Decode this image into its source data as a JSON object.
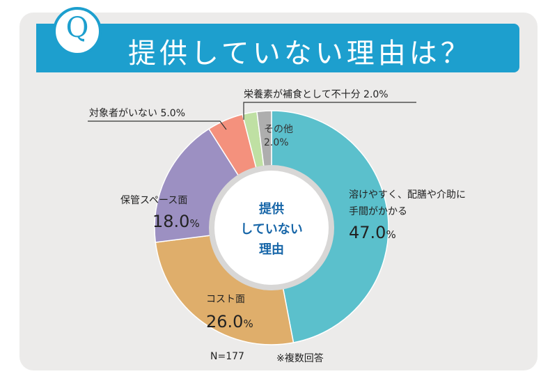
{
  "header": {
    "q_label": "Q",
    "title": "提供していない理由は？"
  },
  "chart_data": {
    "type": "pie",
    "subtype": "donut",
    "center_label": [
      "提供",
      "していない",
      "理由"
    ],
    "slices": [
      {
        "key": "s1",
        "lines": [
          "溶けやすく、配膳や介助に",
          "手間がかかる"
        ],
        "value": 47.0,
        "value_text": "47.0",
        "unit": "%",
        "color": "#5bc0cc"
      },
      {
        "key": "s2",
        "lines": [
          "コスト面"
        ],
        "value": 26.0,
        "value_text": "26.0",
        "unit": "%",
        "color": "#dfae6b"
      },
      {
        "key": "s3",
        "lines": [
          "保管スペース面"
        ],
        "value": 18.0,
        "value_text": "18.0",
        "unit": "%",
        "color": "#9c90c2"
      },
      {
        "key": "s4",
        "lines": [
          "対象者がいない"
        ],
        "value": 5.0,
        "value_text": "5.0%",
        "color": "#f4917d"
      },
      {
        "key": "s5",
        "lines": [
          "栄養素が補食として不十分"
        ],
        "value": 2.0,
        "value_text": "2.0%",
        "color": "#bfe0a3"
      },
      {
        "key": "s6",
        "lines": [
          "その他"
        ],
        "value": 2.0,
        "value_text": "2.0%",
        "color": "#aeaeae"
      }
    ],
    "footnote_n": "N=177",
    "footnote_multi": "※複数回答"
  }
}
